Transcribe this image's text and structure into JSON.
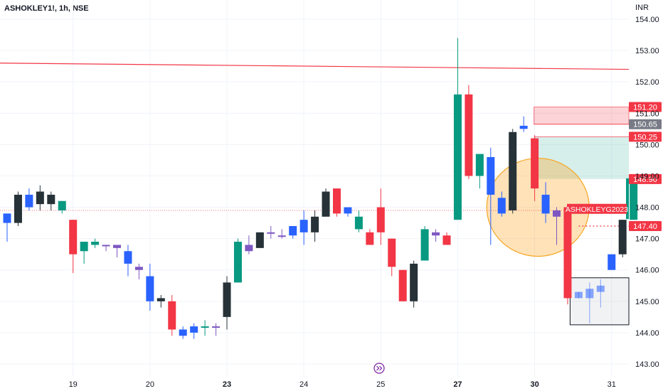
{
  "header": {
    "title": "ASHOKLEY1!, 1h, NSE",
    "currency": "INR"
  },
  "colors": {
    "up_green": "#089981",
    "down_red": "#f23645",
    "blue_candle": "#2962ff",
    "dark_candle": "#263238",
    "purple_candle": "#7e57c2",
    "axis_text": "#131722",
    "grid": "#f0f3fa"
  },
  "chart_data": {
    "type": "candlestick",
    "title": "ASHOKLEY1!, 1h, NSE",
    "ylabel": "INR",
    "ylim": [
      142.8,
      154.3
    ],
    "y_ticks": [
      143.0,
      144.0,
      145.0,
      146.0,
      147.0,
      148.0,
      149.0,
      150.0,
      151.0,
      152.0,
      153.0,
      154.0
    ],
    "x_ticks": [
      {
        "label": "19",
        "index": 6,
        "bold": false
      },
      {
        "label": "20",
        "index": 13,
        "bold": false
      },
      {
        "label": "23",
        "index": 20,
        "bold": true
      },
      {
        "label": "24",
        "index": 27,
        "bold": false
      },
      {
        "label": "25",
        "index": 34,
        "bold": false
      },
      {
        "label": "27",
        "index": 41,
        "bold": true
      },
      {
        "label": "30",
        "index": 48,
        "bold": true
      },
      {
        "label": "31",
        "index": 55,
        "bold": false
      }
    ],
    "candles": [
      {
        "o": 147.5,
        "h": 147.8,
        "c": 147.8,
        "l": 146.9,
        "color": "blue"
      },
      {
        "o": 147.5,
        "h": 148.5,
        "c": 148.4,
        "l": 147.4,
        "color": "dark"
      },
      {
        "o": 148.0,
        "h": 148.6,
        "c": 148.4,
        "l": 147.9,
        "color": "blue"
      },
      {
        "o": 148.5,
        "h": 148.7,
        "c": 148.1,
        "l": 147.9,
        "color": "dark"
      },
      {
        "o": 148.1,
        "h": 148.5,
        "c": 148.4,
        "l": 147.9,
        "color": "dark"
      },
      {
        "o": 148.2,
        "h": 148.2,
        "c": 147.9,
        "l": 147.8,
        "color": "green"
      },
      {
        "o": 147.6,
        "h": 147.6,
        "c": 146.5,
        "l": 145.9,
        "color": "red"
      },
      {
        "o": 146.6,
        "h": 146.9,
        "c": 146.9,
        "l": 146.2,
        "color": "green"
      },
      {
        "o": 146.8,
        "h": 147.0,
        "c": 146.9,
        "l": 146.7,
        "color": "green"
      },
      {
        "o": 146.8,
        "h": 146.8,
        "c": 146.8,
        "l": 146.6,
        "color": "purple"
      },
      {
        "o": 146.8,
        "h": 146.8,
        "c": 146.7,
        "l": 146.4,
        "color": "purple"
      },
      {
        "o": 146.6,
        "h": 146.8,
        "c": 146.2,
        "l": 145.8,
        "color": "blue"
      },
      {
        "o": 146.1,
        "h": 146.2,
        "c": 146.0,
        "l": 145.7,
        "color": "purple"
      },
      {
        "o": 145.8,
        "h": 146.2,
        "c": 145.0,
        "l": 144.7,
        "color": "blue"
      },
      {
        "o": 145.1,
        "h": 145.2,
        "c": 145.0,
        "l": 144.8,
        "color": "dark"
      },
      {
        "o": 145.0,
        "h": 145.2,
        "c": 144.1,
        "l": 143.9,
        "color": "red"
      },
      {
        "o": 144.1,
        "h": 144.2,
        "c": 143.9,
        "l": 143.8,
        "color": "blue"
      },
      {
        "o": 144.0,
        "h": 144.3,
        "c": 144.2,
        "l": 143.8,
        "color": "blue"
      },
      {
        "o": 144.2,
        "h": 144.4,
        "c": 144.2,
        "l": 143.9,
        "color": "green"
      },
      {
        "o": 144.2,
        "h": 144.3,
        "c": 144.2,
        "l": 143.9,
        "color": "purple"
      },
      {
        "o": 144.5,
        "h": 145.8,
        "c": 145.6,
        "l": 144.1,
        "color": "dark"
      },
      {
        "o": 145.6,
        "h": 147.0,
        "c": 146.9,
        "l": 145.6,
        "color": "green"
      },
      {
        "o": 146.8,
        "h": 147.1,
        "c": 146.6,
        "l": 146.5,
        "color": "purple"
      },
      {
        "o": 146.7,
        "h": 147.2,
        "c": 147.2,
        "l": 146.7,
        "color": "dark"
      },
      {
        "o": 147.2,
        "h": 147.4,
        "c": 147.2,
        "l": 147.0,
        "color": "purple"
      },
      {
        "o": 147.1,
        "h": 147.3,
        "c": 147.1,
        "l": 147.0,
        "color": "purple"
      },
      {
        "o": 147.1,
        "h": 147.4,
        "c": 147.4,
        "l": 147.0,
        "color": "blue"
      },
      {
        "o": 147.2,
        "h": 147.9,
        "c": 147.6,
        "l": 146.8,
        "color": "blue"
      },
      {
        "o": 147.2,
        "h": 147.9,
        "c": 147.7,
        "l": 146.9,
        "color": "dark"
      },
      {
        "o": 147.7,
        "h": 148.6,
        "c": 148.5,
        "l": 147.7,
        "color": "dark"
      },
      {
        "o": 148.6,
        "h": 148.6,
        "c": 147.8,
        "l": 147.7,
        "color": "red"
      },
      {
        "o": 147.8,
        "h": 148.0,
        "c": 148.0,
        "l": 147.7,
        "color": "blue"
      },
      {
        "o": 147.7,
        "h": 147.9,
        "c": 147.3,
        "l": 147.2,
        "color": "green"
      },
      {
        "o": 147.2,
        "h": 147.3,
        "c": 146.8,
        "l": 146.8,
        "color": "red"
      },
      {
        "o": 147.2,
        "h": 148.6,
        "c": 148.0,
        "l": 146.8,
        "color": "red"
      },
      {
        "o": 147.0,
        "h": 147.0,
        "c": 146.1,
        "l": 145.8,
        "color": "red"
      },
      {
        "o": 146.0,
        "h": 146.0,
        "c": 145.0,
        "l": 145.0,
        "color": "red"
      },
      {
        "o": 145.0,
        "h": 146.3,
        "c": 146.2,
        "l": 144.8,
        "color": "dark"
      },
      {
        "o": 146.3,
        "h": 147.4,
        "c": 147.3,
        "l": 146.3,
        "color": "green"
      },
      {
        "o": 147.1,
        "h": 147.3,
        "c": 147.2,
        "l": 146.9,
        "color": "purple"
      },
      {
        "o": 147.1,
        "h": 147.2,
        "c": 146.8,
        "l": 146.8,
        "color": "red"
      },
      {
        "o": 147.6,
        "h": 153.4,
        "c": 151.6,
        "l": 147.6,
        "color": "green"
      },
      {
        "o": 151.6,
        "h": 151.9,
        "c": 149.0,
        "l": 148.9,
        "color": "red"
      },
      {
        "o": 149.0,
        "h": 149.7,
        "c": 149.7,
        "l": 148.6,
        "color": "green"
      },
      {
        "o": 149.6,
        "h": 149.9,
        "c": 148.4,
        "l": 146.8,
        "color": "blue"
      },
      {
        "o": 148.3,
        "h": 148.5,
        "c": 147.8,
        "l": 147.7,
        "color": "blue"
      },
      {
        "o": 147.9,
        "h": 150.5,
        "c": 150.4,
        "l": 147.8,
        "color": "dark"
      },
      {
        "o": 150.5,
        "h": 150.9,
        "c": 150.6,
        "l": 150.4,
        "color": "blue"
      },
      {
        "o": 150.2,
        "h": 150.3,
        "c": 148.6,
        "l": 148.2,
        "color": "red"
      },
      {
        "o": 148.4,
        "h": 148.8,
        "c": 147.8,
        "l": 147.5,
        "color": "blue"
      },
      {
        "o": 147.9,
        "h": 148.0,
        "c": 147.7,
        "l": 146.8,
        "color": "purple"
      },
      {
        "o": 148.0,
        "h": 148.0,
        "c": 145.1,
        "l": 144.9,
        "color": "red"
      },
      {
        "o": 145.1,
        "h": 145.3,
        "c": 145.3,
        "l": 145.1,
        "color": "blue"
      },
      {
        "o": 145.1,
        "h": 145.6,
        "c": 145.4,
        "l": 144.3,
        "color": "blue"
      },
      {
        "o": 145.3,
        "h": 145.7,
        "c": 145.5,
        "l": 144.8,
        "color": "blue"
      },
      {
        "o": 146.0,
        "h": 146.5,
        "c": 146.5,
        "l": 146.0,
        "color": "blue"
      },
      {
        "o": 146.5,
        "h": 147.6,
        "c": 147.6,
        "l": 146.4,
        "color": "dark"
      },
      {
        "o": 147.6,
        "h": 148.9,
        "c": 148.9,
        "l": 147.6,
        "color": "green"
      }
    ],
    "annotations": {
      "trend_line": {
        "start_price": 152.6,
        "end_price": 152.4
      },
      "dotted_level": 147.9,
      "zone_red": [
        150.65,
        151.2
      ],
      "zone_green": [
        148.9,
        150.25
      ],
      "circle_center_index": 48.3,
      "circle_center_price": 148.0,
      "box_price_range": [
        144.25,
        145.75
      ],
      "price_labels": [
        {
          "text": "151.20",
          "price": 151.2,
          "color": "#f23645"
        },
        {
          "text": "150.65",
          "price": 150.65,
          "color": "#787b86"
        },
        {
          "text": "150.25",
          "price": 150.25,
          "color": "#f23645"
        },
        {
          "text": "148.90",
          "price": 148.9,
          "color": "#f23645"
        },
        {
          "text": "147.40",
          "price": 147.4,
          "color": "#f23645"
        }
      ],
      "symbol_tag": {
        "text": "ASHOKLEYG2023",
        "price": 147.95
      }
    }
  }
}
